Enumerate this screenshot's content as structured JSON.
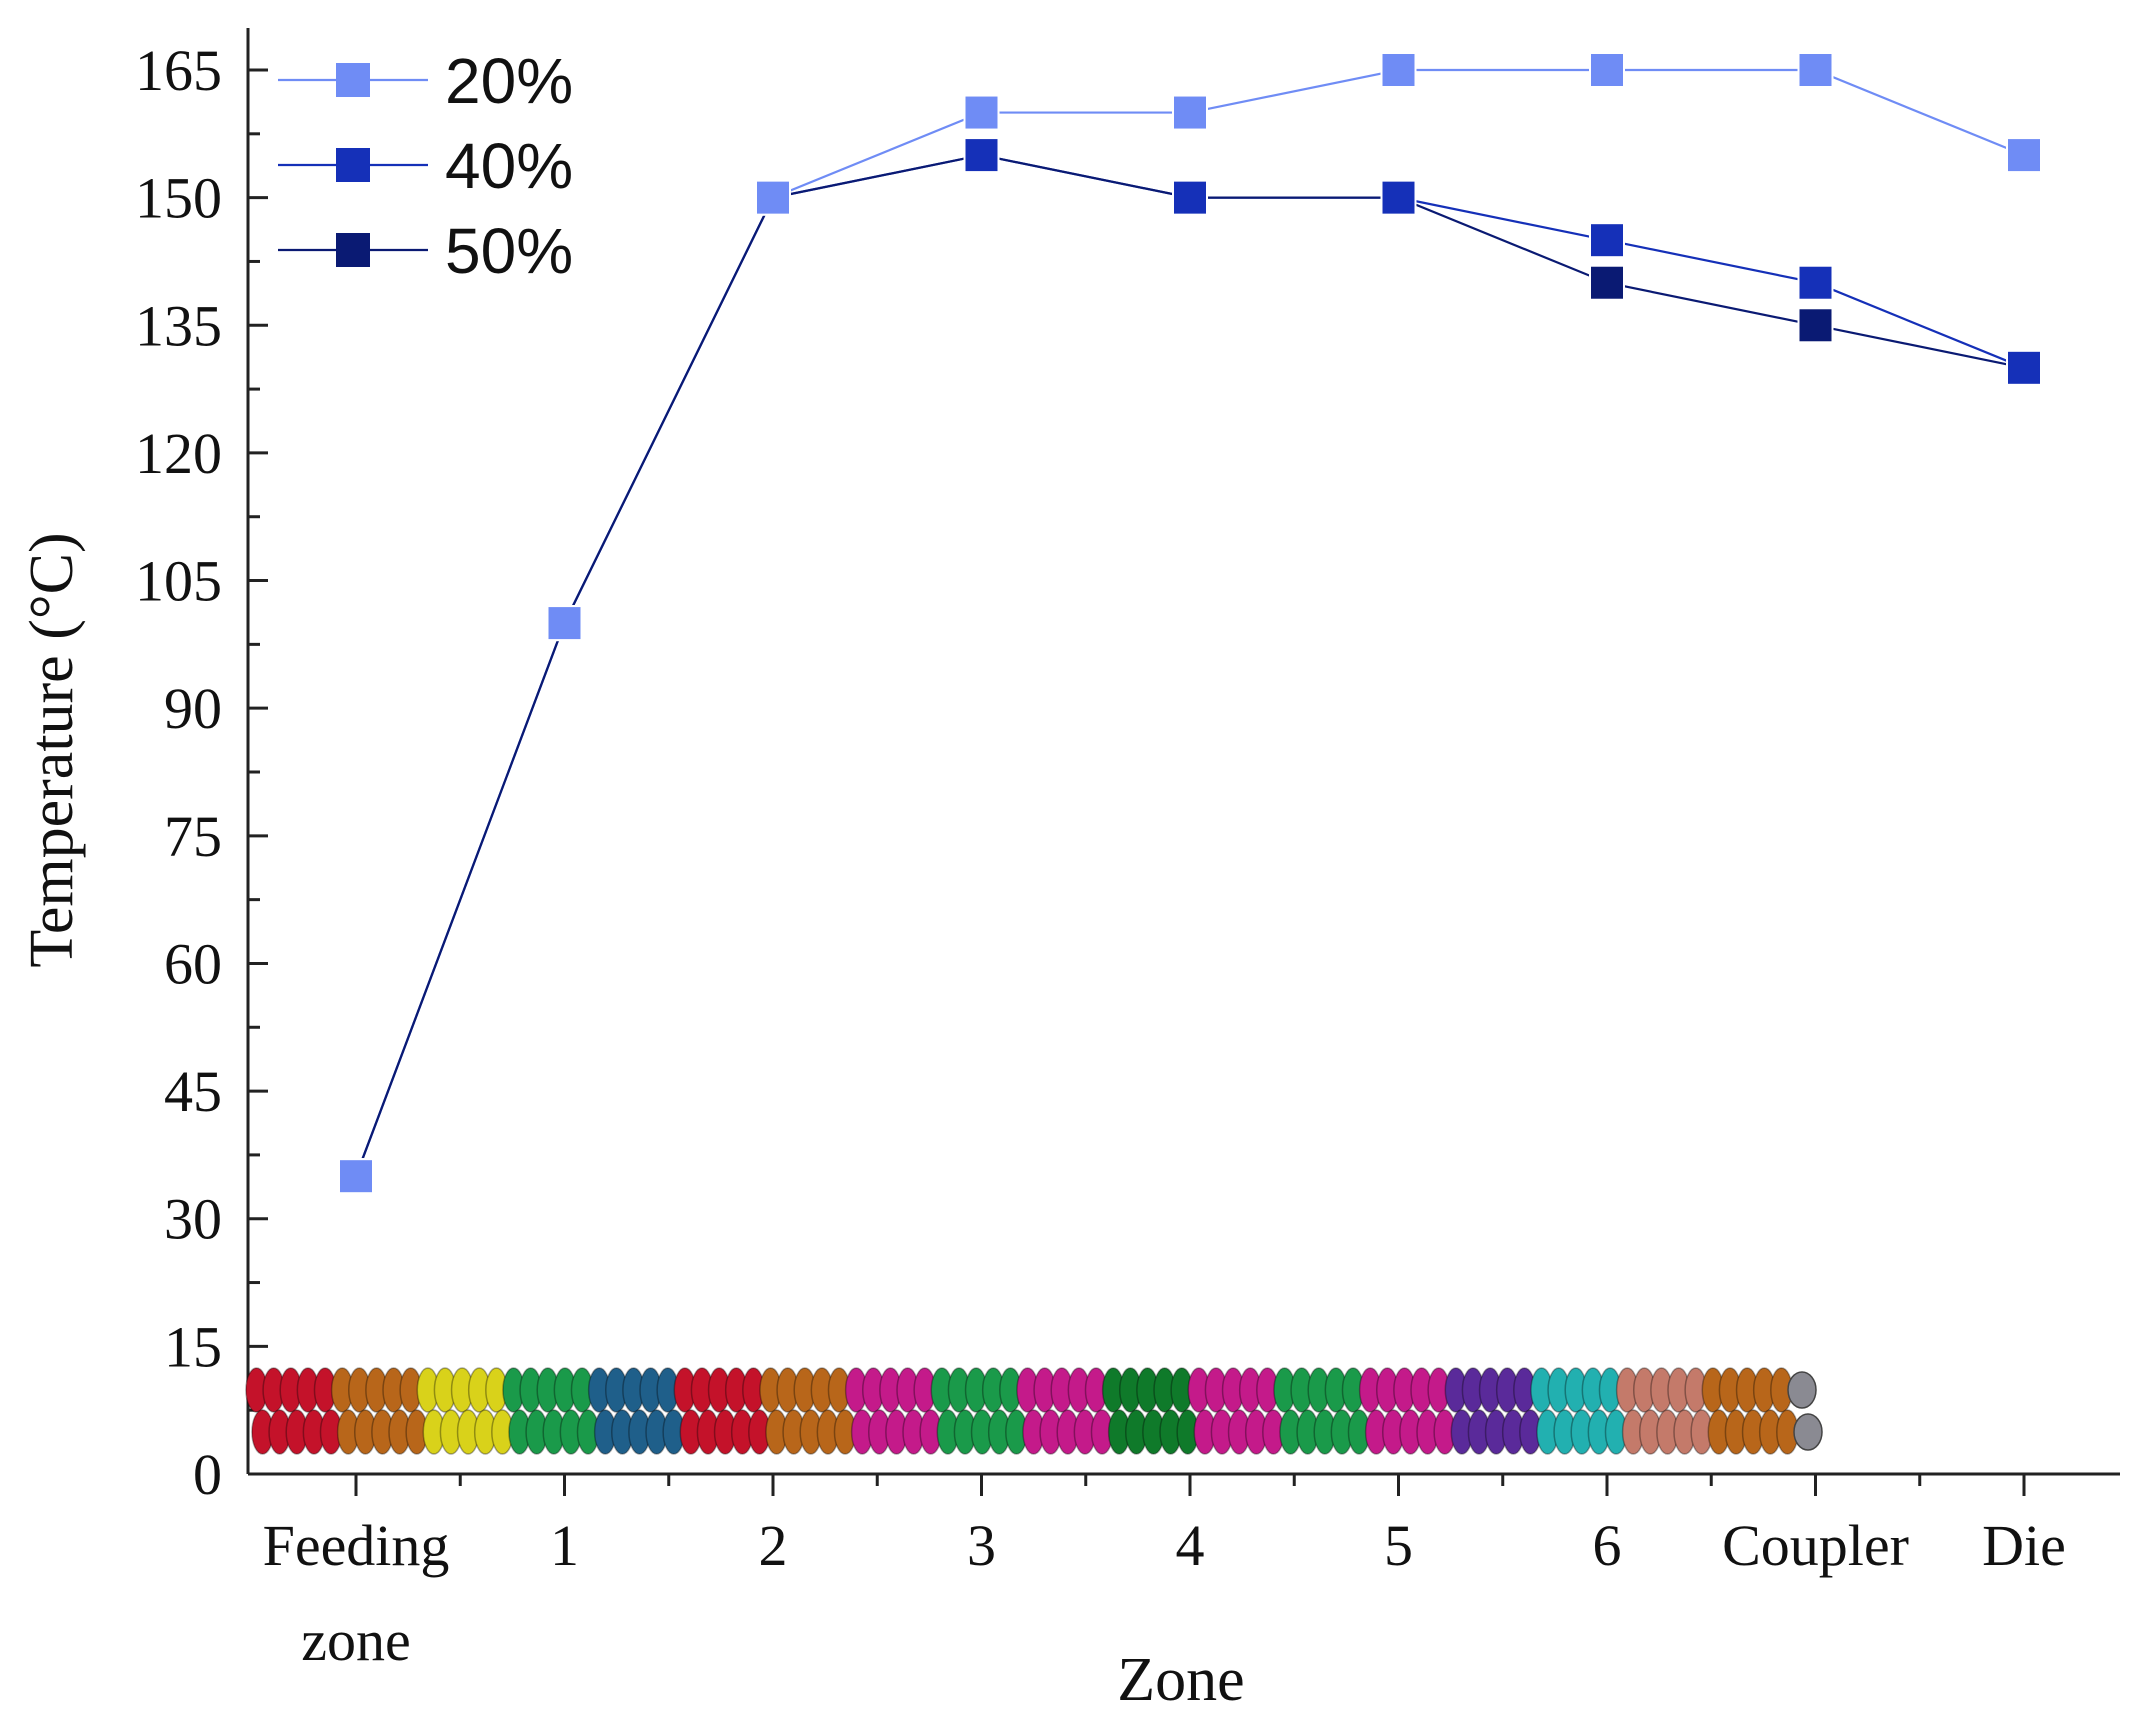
{
  "chart_data": {
    "type": "line",
    "title": "",
    "xlabel": "Zone",
    "ylabel": "Temperature (°C)",
    "categories": [
      [
        "Feeding",
        "zone"
      ],
      [
        "1"
      ],
      [
        "2"
      ],
      [
        "3"
      ],
      [
        "4"
      ],
      [
        "5"
      ],
      [
        "6"
      ],
      [
        "Coupler"
      ],
      [
        "Die"
      ]
    ],
    "y_ticks": [
      0,
      15,
      30,
      45,
      60,
      75,
      90,
      105,
      120,
      135,
      150,
      165
    ],
    "ylim": [
      0,
      170
    ],
    "legend_position": "top-left",
    "series": [
      {
        "name": "20%",
        "color": "#6f8cf5",
        "values": [
          35,
          100,
          150,
          160,
          160,
          165,
          165,
          165,
          155
        ]
      },
      {
        "name": "40%",
        "color": "#1530b8",
        "values": [
          35,
          100,
          150,
          155,
          150,
          150,
          145,
          140,
          130
        ]
      },
      {
        "name": "50%",
        "color": "#0a1a73",
        "values": [
          35,
          100,
          150,
          155,
          150,
          150,
          140,
          135,
          130
        ]
      }
    ],
    "screw_illustration": {
      "description_icon": "extruder-twin-screw-illustration",
      "segment_colors": [
        "#c4122a",
        "#b8661a",
        "#d9d21a",
        "#1a9a4a",
        "#1f5f8a",
        "#c4122a",
        "#b8661a",
        "#c41a8a",
        "#1a9a4a",
        "#c41a8a",
        "#0f7a2a",
        "#c41a8a",
        "#1a9a4a",
        "#c41a8a",
        "#5a2a9a",
        "#22b0b0",
        "#c47a6a",
        "#b8661a"
      ]
    }
  }
}
